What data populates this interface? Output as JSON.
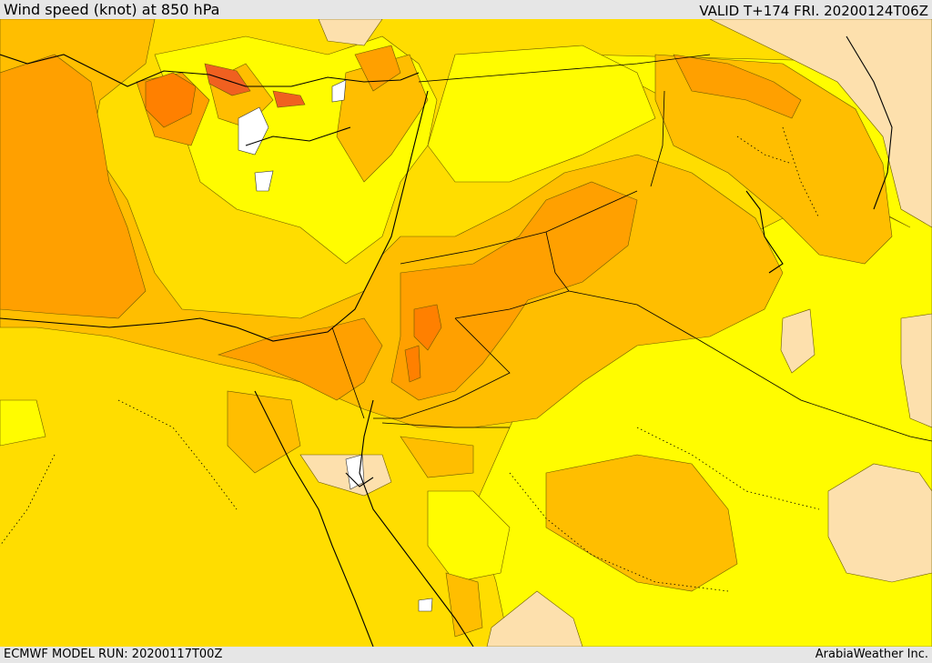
{
  "header": {
    "title": "Wind speed (knot) at 850 hPa",
    "valid_time": "VALID T+174 FRI. 20200124T06Z"
  },
  "footer": {
    "model_run": "ECMWF MODEL RUN: 20200117T00Z",
    "credit": "ArabiaWeather Inc."
  },
  "palette": {
    "very_light": "#fde0ad",
    "yellow": "#fffc00",
    "gold": "#ffdd00",
    "amber": "#ffbe00",
    "orange": "#ffa000",
    "dark_orange": "#ff8000",
    "red_orange": "#f06020",
    "no_data": "#ffffff"
  }
}
